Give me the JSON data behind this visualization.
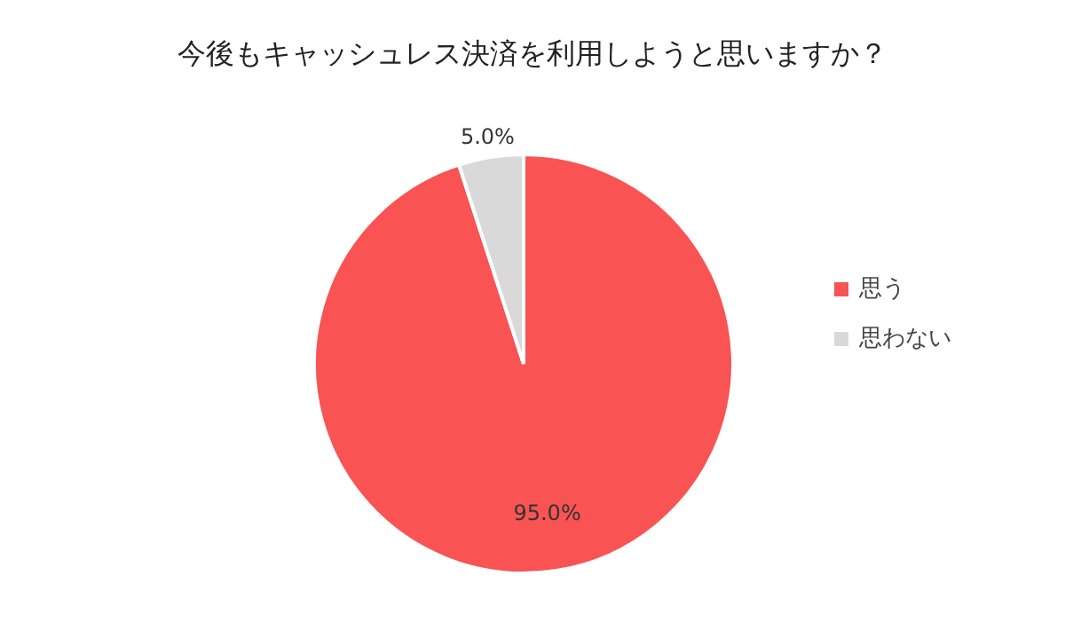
{
  "chart_data": {
    "type": "pie",
    "title": "今後もキャッシュレス決済を利用しようと思いますか？",
    "categories": [
      "思う",
      "思わない"
    ],
    "values": [
      95.0,
      5.0
    ],
    "colors": [
      "#f95353",
      "#d9d9d9"
    ],
    "value_labels": [
      "95.0%",
      "5.0%"
    ],
    "legend": "right"
  }
}
